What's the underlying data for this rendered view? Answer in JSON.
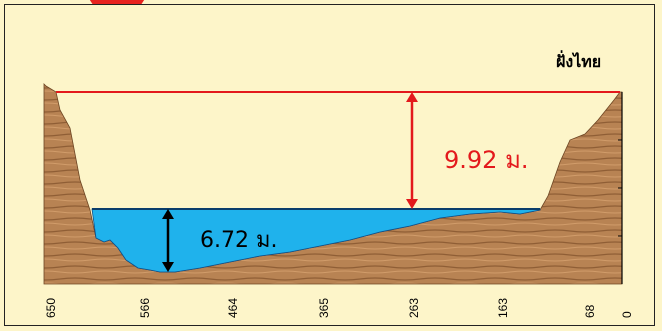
{
  "side_label": "ฝั่งไทย",
  "flood_height_label": "9.92 ม.",
  "water_depth_label": "6.72 ม.",
  "distance_ticks": [
    "650",
    "566",
    "464",
    "365",
    "263",
    "163",
    "68",
    "0"
  ],
  "colors": {
    "background": "#fdf5c9",
    "water": "#1fb2ec",
    "terrain": "#b07a4a",
    "flood_line": "#e3191c",
    "marker_circle": "#e8231f"
  }
}
